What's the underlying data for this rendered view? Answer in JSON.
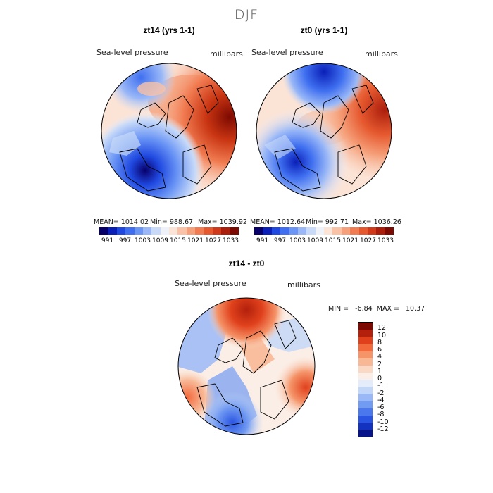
{
  "season": "DJF",
  "panel1": {
    "title": "zt14 (yrs 1-1)",
    "field": "Sea-level pressure",
    "units": "millibars",
    "mean_label": "MEAN= 1014.02",
    "min_label": "Min= 988.67",
    "max_label": "Max= 1039.92"
  },
  "panel2": {
    "title": "zt0 (yrs 1-1)",
    "field": "Sea-level pressure",
    "units": "millibars",
    "mean_label": "MEAN= 1012.64",
    "min_label": "Min= 992.71",
    "max_label": "Max= 1036.26"
  },
  "panel3": {
    "title": "zt14 - zt0",
    "field": "Sea-level pressure",
    "units": "millibars",
    "minmax_label": "MIN =   -6.84  MAX =   10.37"
  },
  "colorbar_abs": {
    "colors": [
      "#08006a",
      "#0a1fb8",
      "#1f48e0",
      "#3f6ff0",
      "#6a95f5",
      "#9ab8f7",
      "#c8daf8",
      "#eef2f8",
      "#fbe3d6",
      "#f9c2a6",
      "#f5a07a",
      "#f17c52",
      "#e6592f",
      "#d03a1a",
      "#ab1e0c",
      "#7d0a02"
    ],
    "labels": [
      "991",
      "997",
      "1003",
      "1009",
      "1015",
      "1021",
      "1027",
      "1033"
    ]
  },
  "colorbar_diff": {
    "colors": [
      "#7d0a02",
      "#b3200c",
      "#e0411c",
      "#f36a3d",
      "#f59469",
      "#f8b896",
      "#fbd8c4",
      "#fbeee6",
      "#e4ecfa",
      "#c2d6f8",
      "#9ab8f6",
      "#729bf2",
      "#4b78ec",
      "#2a55e2",
      "#1432c0",
      "#07148a"
    ],
    "labels": [
      "12",
      "10",
      "8",
      "6",
      "4",
      "2",
      "1",
      "0",
      "-1",
      "-2",
      "-4",
      "-6",
      "-8",
      "-10",
      "-12"
    ]
  },
  "icons": {
    "map1": "polar-map-icon",
    "map2": "polar-map-icon",
    "map3": "polar-map-icon"
  }
}
